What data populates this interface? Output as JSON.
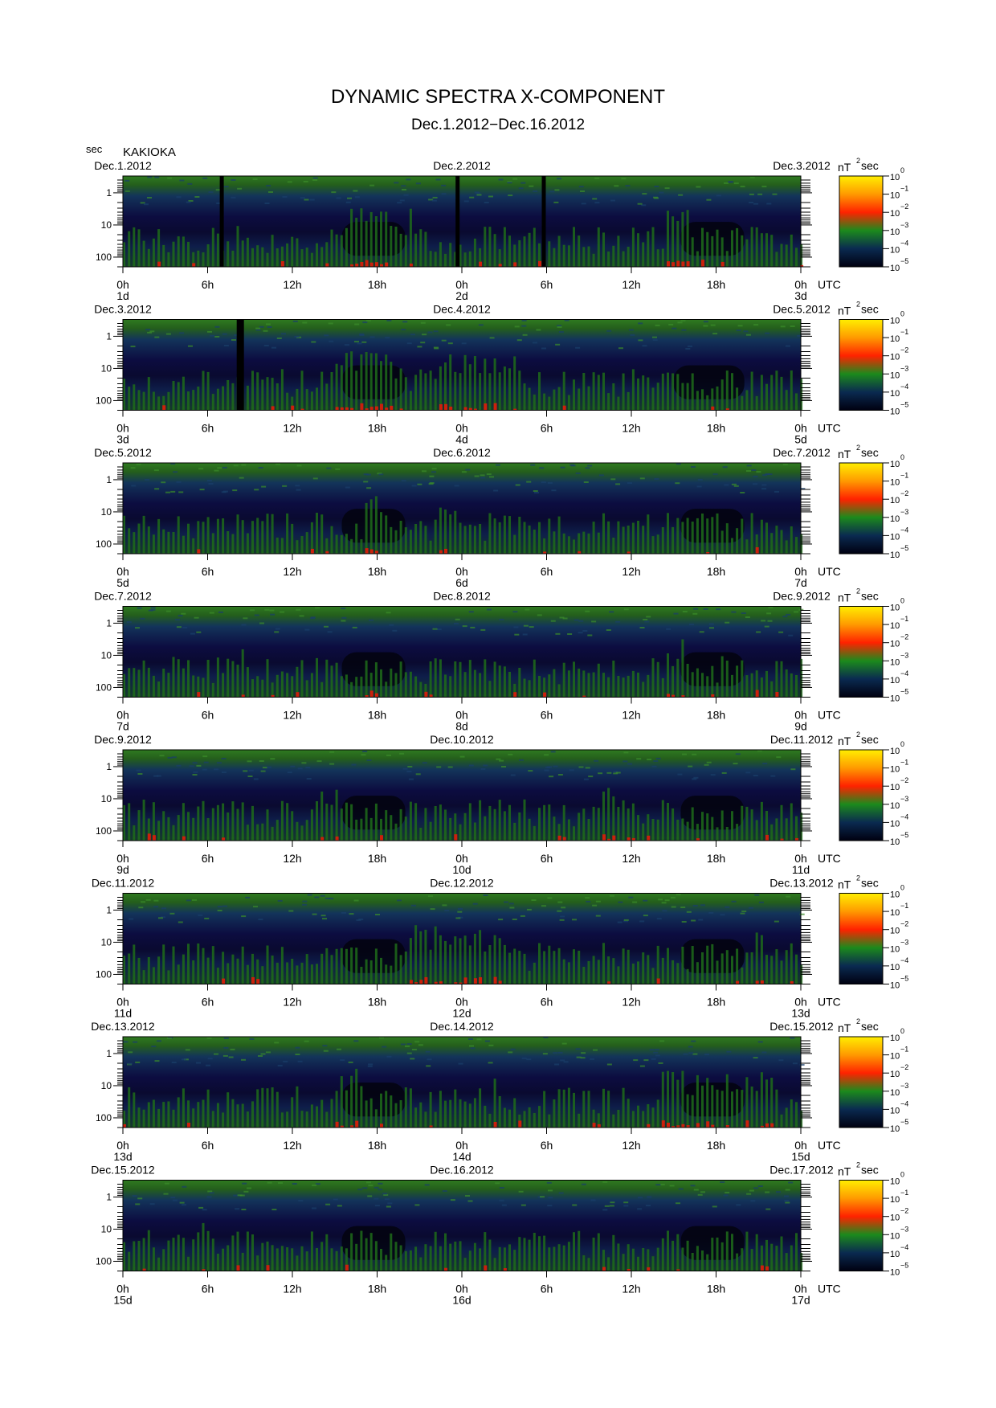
{
  "title": "DYNAMIC SPECTRA X-COMPONENT",
  "subtitle": "Dec.1.2012−Dec.16.2012",
  "station": "KAKIOKA",
  "y_unit": "sec",
  "time_unit": "UTC",
  "colorbar_unit": "nT",
  "colorbar_unit_sup": "2",
  "colorbar_unit_tail": "sec",
  "colorbar_ticks": [
    {
      "base": "10",
      "exp": "0"
    },
    {
      "base": "10",
      "exp": "−1"
    },
    {
      "base": "10",
      "exp": "−2"
    },
    {
      "base": "10",
      "exp": "−3"
    },
    {
      "base": "10",
      "exp": "−4"
    },
    {
      "base": "10",
      "exp": "−5"
    }
  ],
  "colors": {
    "background": "#000000",
    "low": "#10103a",
    "mid": "#1f6b1a",
    "high": "#e01a0a",
    "peak": "#ffe000",
    "colorbar_stops": [
      "#ffee00",
      "#ff9a00",
      "#ff2200",
      "#1c8a1c",
      "#0a2a50",
      "#000010"
    ]
  },
  "chart_data": [
    {
      "type": "heatmap",
      "start_date": "Dec.1.2012",
      "mid_date": "Dec.2.2012",
      "end_date": "Dec.3.2012",
      "x_ticks": [
        "0h",
        "6h",
        "12h",
        "18h",
        "0h",
        "6h",
        "12h",
        "18h",
        "0h"
      ],
      "day_labels": [
        "1d",
        "2d",
        "3d"
      ],
      "y_ticks": [
        "1",
        "10",
        "100"
      ],
      "yscale": "log",
      "ylabel": "sec",
      "xlabel": "UTC",
      "color_range": [
        "10^-5",
        "10^0"
      ],
      "gaps_hours": [
        7,
        23.7,
        29.8
      ],
      "quiet_hours": [
        [
          15.5,
          20
        ],
        [
          39.5,
          44
        ]
      ],
      "events_hours": [
        [
          16,
          21.5
        ],
        [
          38.5,
          40
        ]
      ]
    },
    {
      "type": "heatmap",
      "start_date": "Dec.3.2012",
      "mid_date": "Dec.4.2012",
      "end_date": "Dec.5.2012",
      "x_ticks": [
        "0h",
        "6h",
        "12h",
        "18h",
        "0h",
        "6h",
        "12h",
        "18h",
        "0h"
      ],
      "day_labels": [
        "3d",
        "4d",
        "5d"
      ],
      "y_ticks": [
        "1",
        "10",
        "100"
      ],
      "yscale": "log",
      "ylabel": "sec",
      "xlabel": "UTC",
      "color_range": [
        "10^-5",
        "10^0"
      ],
      "gaps_hours": [
        8.2
      ],
      "quiet_hours": [
        [
          15.5,
          20
        ],
        [
          39,
          44
        ]
      ],
      "events_hours": [
        [
          15,
          20
        ],
        [
          22,
          28
        ]
      ]
    },
    {
      "type": "heatmap",
      "start_date": "Dec.5.2012",
      "mid_date": "Dec.6.2012",
      "end_date": "Dec.7.2012",
      "x_ticks": [
        "0h",
        "6h",
        "12h",
        "18h",
        "0h",
        "6h",
        "12h",
        "18h",
        "0h"
      ],
      "day_labels": [
        "5d",
        "6d",
        "7d"
      ],
      "y_ticks": [
        "1",
        "10",
        "100"
      ],
      "yscale": "log",
      "ylabel": "sec",
      "xlabel": "UTC",
      "color_range": [
        "10^-5",
        "10^0"
      ],
      "gaps_hours": [],
      "quiet_hours": [
        [
          15.5,
          20
        ],
        [
          39.5,
          44
        ]
      ],
      "events_hours": [
        [
          17,
          18.5
        ],
        [
          22,
          23.5
        ]
      ]
    },
    {
      "type": "heatmap",
      "start_date": "Dec.7.2012",
      "mid_date": "Dec.8.2012",
      "end_date": "Dec.9.2012",
      "x_ticks": [
        "0h",
        "6h",
        "12h",
        "18h",
        "0h",
        "6h",
        "12h",
        "18h",
        "0h"
      ],
      "day_labels": [
        "7d",
        "8d",
        "9d"
      ],
      "y_ticks": [
        "1",
        "10",
        "100"
      ],
      "yscale": "log",
      "ylabel": "sec",
      "xlabel": "UTC",
      "color_range": [
        "10^-5",
        "10^0"
      ],
      "gaps_hours": [],
      "quiet_hours": [
        [
          15.5,
          20
        ],
        [
          39.5,
          44
        ]
      ],
      "events_hours": [
        [
          8.2,
          8.4
        ],
        [
          38.5,
          40
        ]
      ]
    },
    {
      "type": "heatmap",
      "start_date": "Dec.9.2012",
      "mid_date": "Dec.10.2012",
      "end_date": "Dec.11.2012",
      "x_ticks": [
        "0h",
        "6h",
        "12h",
        "18h",
        "0h",
        "6h",
        "12h",
        "18h",
        "0h"
      ],
      "day_labels": [
        "9d",
        "10d",
        "11d"
      ],
      "y_ticks": [
        "1",
        "10",
        "100"
      ],
      "yscale": "log",
      "ylabel": "sec",
      "xlabel": "UTC",
      "color_range": [
        "10^-5",
        "10^0"
      ],
      "gaps_hours": [],
      "quiet_hours": [
        [
          15.5,
          20
        ],
        [
          39.5,
          44
        ]
      ],
      "events_hours": [
        [
          13,
          16
        ],
        [
          33,
          36
        ]
      ]
    },
    {
      "type": "heatmap",
      "start_date": "Dec.11.2012",
      "mid_date": "Dec.12.2012",
      "end_date": "Dec.13.2012",
      "x_ticks": [
        "0h",
        "6h",
        "12h",
        "18h",
        "0h",
        "6h",
        "12h",
        "18h",
        "0h"
      ],
      "day_labels": [
        "11d",
        "12d",
        "13d"
      ],
      "y_ticks": [
        "1",
        "10",
        "100"
      ],
      "yscale": "log",
      "ylabel": "sec",
      "xlabel": "UTC",
      "color_range": [
        "10^-5",
        "10^0"
      ],
      "gaps_hours": [],
      "quiet_hours": [
        [
          15.5,
          20
        ],
        [
          39.5,
          44
        ]
      ],
      "events_hours": [
        [
          20,
          27
        ],
        [
          44,
          45.5
        ]
      ]
    },
    {
      "type": "heatmap",
      "start_date": "Dec.13.2012",
      "mid_date": "Dec.14.2012",
      "end_date": "Dec.15.2012",
      "x_ticks": [
        "0h",
        "6h",
        "12h",
        "18h",
        "0h",
        "6h",
        "12h",
        "18h",
        "0h"
      ],
      "day_labels": [
        "13d",
        "14d",
        "15d"
      ],
      "y_ticks": [
        "1",
        "10",
        "100"
      ],
      "yscale": "log",
      "ylabel": "sec",
      "xlabel": "UTC",
      "color_range": [
        "10^-5",
        "10^0"
      ],
      "gaps_hours": [],
      "quiet_hours": [
        [
          15.5,
          20
        ],
        [
          39.5,
          44
        ]
      ],
      "events_hours": [
        [
          15,
          17
        ],
        [
          26,
          26.3
        ],
        [
          38,
          46
        ]
      ]
    },
    {
      "type": "heatmap",
      "start_date": "Dec.15.2012",
      "mid_date": "Dec.16.2012",
      "end_date": "Dec.17.2012",
      "x_ticks": [
        "0h",
        "6h",
        "12h",
        "18h",
        "0h",
        "6h",
        "12h",
        "18h",
        "0h"
      ],
      "day_labels": [
        "15d",
        "16d",
        "17d"
      ],
      "y_ticks": [
        "1",
        "10",
        "100"
      ],
      "yscale": "log",
      "ylabel": "sec",
      "xlabel": "UTC",
      "color_range": [
        "10^-5",
        "10^0"
      ],
      "gaps_hours": [],
      "quiet_hours": [
        [
          15.5,
          20
        ],
        [
          39.5,
          44
        ]
      ],
      "events_hours": [
        [
          4.3,
          4.5
        ],
        [
          5.5,
          5.7
        ]
      ]
    }
  ]
}
